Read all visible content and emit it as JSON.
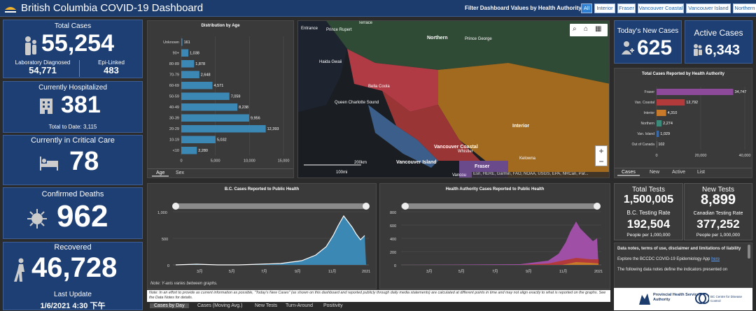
{
  "header": {
    "title": "British Columbia COVID-19 Dashboard",
    "filter_label": "Filter Dashboard Values by Health Authority:",
    "filters": [
      "All",
      "Interior",
      "Fraser",
      "Vancouver Coastal",
      "Vancouver Island",
      "Northern"
    ]
  },
  "total_cases": {
    "label": "Total Cases",
    "value": "55,254",
    "lab_label": "Laboratory Diagnosed",
    "lab_value": "54,771",
    "epi_label": "Epi-Linked",
    "epi_value": "483"
  },
  "hospitalized": {
    "label": "Currently Hospitalized",
    "value": "381",
    "to_date": "Total to Date: 3,115"
  },
  "critical": {
    "label": "Currently in Critical Care",
    "value": "78"
  },
  "deaths": {
    "label": "Confirmed Deaths",
    "value": "962"
  },
  "recovered": {
    "label": "Recovered",
    "value": "46,728"
  },
  "last_update": {
    "label": "Last Update",
    "value": "1/6/2021 4:30 下午"
  },
  "age_chart": {
    "title": "Distribution by Age",
    "tabs": [
      "Age",
      "Sex"
    ]
  },
  "map": {
    "labels": [
      "Northern",
      "Prince George",
      "Prince Rupert",
      "Terrace",
      "Entrance",
      "Haida Gwaii",
      "Bella Coola",
      "Queen Charlotte Sound",
      "Interior",
      "Vancouver Coastal",
      "Whistler",
      "Vancouver Island",
      "Fraser",
      "Kelowna",
      "Vancou"
    ],
    "scale_km": "200km",
    "scale_mi": "100mi",
    "attribution": "Esri, HERE, Garmin, FAO, NOAA, USGS, EPA, NRCan, Par..."
  },
  "new_cases": {
    "label": "Today's New Cases",
    "value": "625"
  },
  "active_cases": {
    "label": "Active Cases",
    "value": "6,343"
  },
  "ha_chart": {
    "title": "Total Cases Reported by Health Authority",
    "tabs": [
      "Cases",
      "New",
      "Active",
      "List"
    ]
  },
  "bc_curve": {
    "title": "B.C. Cases Reported to Public Health",
    "note": "Note: Y-axis varies between graphs.",
    "xlabels": [
      "3月",
      "5月",
      "7月",
      "9月",
      "11月",
      "2021"
    ],
    "ylabels": [
      "1,000",
      "500",
      "0"
    ]
  },
  "ha_curve": {
    "title": "Health Authority Cases Reported to Public Health",
    "xlabels": [
      "3月",
      "5月",
      "7月",
      "9月",
      "11月",
      "2021"
    ],
    "ylabels": [
      "800",
      "600",
      "400",
      "200",
      "0"
    ]
  },
  "footnote": "Note: In an effort to provide as current information as possible, \"Today's New Cases\" (as shown on this dashboard and reported publicly through daily media statements) are calculated at different points in time and may not align exactly to what is reported on the graphs. See the Data Notes for details.",
  "bottom_tabs": [
    "Cases by Day",
    "Cases (Moving Avg.)",
    "New Tests",
    "Turn-Around",
    "Positivity"
  ],
  "tests": {
    "total_label": "Total Tests",
    "total_value": "1,500,005",
    "new_label": "New Tests",
    "new_value": "8,899",
    "bc_rate_label": "B.C. Testing Rate",
    "bc_rate_value": "192,504",
    "bc_rate_unit": "People per 1,000,000",
    "ca_rate_label": "Canadian Testing Rate",
    "ca_rate_value": "377,252",
    "ca_rate_unit": "People per 1,000,000"
  },
  "notes": {
    "title": "Data notes, terms of use, disclaimer and limitations of liability",
    "p1": "Explore the BCCDC COVID-19 Epidemiology App",
    "p1_link": "here",
    "p2": "The following data notes define the indicators presented on"
  },
  "logos": {
    "phsa": "Provincial Health Services Authority",
    "bccdc": "BC Centre for Disease Control"
  },
  "chart_data": [
    {
      "type": "bar",
      "title": "Distribution by Age",
      "categories": [
        "Unknown",
        "90+",
        "80-89",
        "70-79",
        "60-69",
        "50-59",
        "40-49",
        "30-39",
        "20-29",
        "10-19",
        "<10"
      ],
      "values": [
        161,
        1038,
        1878,
        2648,
        4571,
        7059,
        8238,
        9956,
        12393,
        5032,
        2280
      ],
      "xlim": [
        0,
        15000
      ],
      "xticks": [
        "0",
        "5,000",
        "10,000",
        "15,000"
      ]
    },
    {
      "type": "bar",
      "title": "Total Cases Reported by Health Authority",
      "categories": [
        "Fraser",
        "Van. Coastal",
        "Interior",
        "Northern",
        "Van. Island",
        "Out of Canada"
      ],
      "values": [
        34747,
        12792,
        4310,
        2274,
        1029,
        102
      ],
      "labels": [
        "34,747",
        "12,792",
        "4,310",
        "2,274",
        "1,029",
        "102"
      ],
      "colors": [
        "#8e4a9a",
        "#b23a3a",
        "#c87a2a",
        "#3b8a7a",
        "#3a6aa8",
        "#666666"
      ],
      "xlim": [
        0,
        40000
      ],
      "xticks": [
        "0",
        "20,000",
        "40,000"
      ]
    }
  ]
}
